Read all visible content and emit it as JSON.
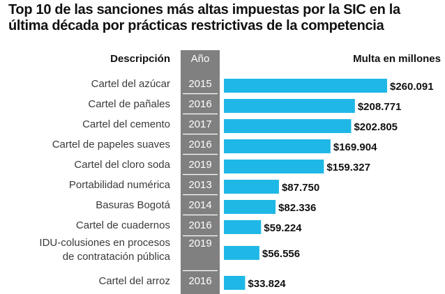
{
  "title": "Top 10 de las sanciones más altas impuestas por la SIC en la última década por prácticas restrictivas de la competencia",
  "colors": {
    "bar": "#1fb8e6",
    "year_column": "#808080",
    "separator": "#ffffff"
  },
  "chart_data": {
    "type": "bar",
    "orientation": "horizontal",
    "title": "Top 10 de las sanciones más altas impuestas por la SIC en la última década por prácticas restrictivas de la competencia",
    "headers": {
      "description": "Descripción",
      "year": "Año",
      "value": "Multa en millones"
    },
    "categories": [
      [
        "Cartel del azúcar"
      ],
      [
        "Cartel de pañales"
      ],
      [
        "Cartel del cemento"
      ],
      [
        "Cartel de papeles suaves"
      ],
      [
        "Cartel del cloro soda"
      ],
      [
        "Portabilidad numérica"
      ],
      [
        "Basuras Bogotá"
      ],
      [
        "Cartel de cuadernos"
      ],
      [
        "IDU-colusiones en procesos",
        "de contratación pública"
      ],
      [
        "Cartel del arroz"
      ]
    ],
    "years": [
      "2015",
      "2016",
      "2017",
      "2016",
      "2019",
      "2013",
      "2014",
      "2016",
      "2019",
      "2016"
    ],
    "values": [
      260091,
      208771,
      202805,
      169904,
      159327,
      87750,
      82336,
      59224,
      56556,
      33824
    ],
    "value_labels": [
      "$260.091",
      "$208.771",
      "$202.805",
      "$169.904",
      "$159.327",
      "$87.750",
      "$82.336",
      "$59.224",
      "$56.556",
      "$33.824"
    ],
    "unit": "millones",
    "grid": false,
    "legend": "none"
  }
}
